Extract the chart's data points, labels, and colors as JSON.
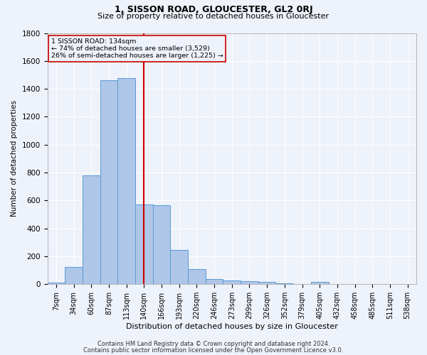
{
  "title": "1, SISSON ROAD, GLOUCESTER, GL2 0RJ",
  "subtitle": "Size of property relative to detached houses in Gloucester",
  "xlabel": "Distribution of detached houses by size in Gloucester",
  "ylabel": "Number of detached properties",
  "footnote1": "Contains HM Land Registry data © Crown copyright and database right 2024.",
  "footnote2": "Contains public sector information licensed under the Open Government Licence v3.0.",
  "annotation_line1": "1 SISSON ROAD: 134sqm",
  "annotation_line2": "← 74% of detached houses are smaller (3,529)",
  "annotation_line3": "26% of semi-detached houses are larger (1,225) →",
  "bar_color": "#aec6e8",
  "bar_edge_color": "#5b9bd5",
  "vline_color": "#cc0000",
  "vline_x": 5.0,
  "ylim": [
    0,
    1800
  ],
  "yticks": [
    0,
    200,
    400,
    600,
    800,
    1000,
    1200,
    1400,
    1600,
    1800
  ],
  "categories": [
    "7sqm",
    "34sqm",
    "60sqm",
    "87sqm",
    "113sqm",
    "140sqm",
    "166sqm",
    "193sqm",
    "220sqm",
    "246sqm",
    "273sqm",
    "299sqm",
    "326sqm",
    "352sqm",
    "379sqm",
    "405sqm",
    "432sqm",
    "458sqm",
    "485sqm",
    "511sqm",
    "538sqm"
  ],
  "values": [
    10,
    125,
    780,
    1460,
    1475,
    570,
    565,
    245,
    110,
    35,
    25,
    20,
    15,
    5,
    0,
    15,
    0,
    0,
    0,
    0,
    0
  ],
  "background_color": "#eef2fa",
  "grid_color": "#ffffff",
  "title_fontsize": 9,
  "subtitle_fontsize": 8,
  "tick_fontsize": 7,
  "ylabel_fontsize": 7.5,
  "xlabel_fontsize": 8,
  "footnote_fontsize": 6
}
